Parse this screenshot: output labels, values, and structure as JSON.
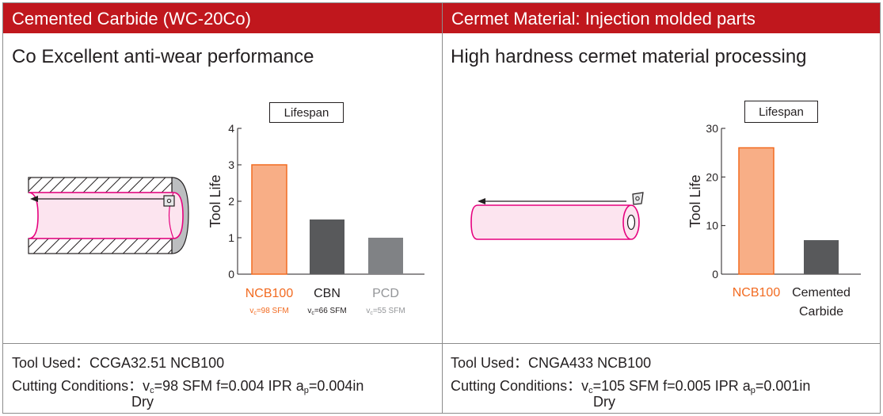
{
  "left": {
    "header": "Cemented Carbide (WC-20Co)",
    "subtitle": "Co Excellent anti-wear performance",
    "legend": "Lifespan",
    "tool_used": "Tool Used：CCGA32.51 NCB100",
    "cutting_prefix": "Cutting Conditions：v",
    "cutting_sub_c": "c",
    "cutting_mid": "=98 SFM  f=0.004 IPR  a",
    "cutting_sub_p": "p",
    "cutting_end": "=0.004in",
    "dry": "Dry"
  },
  "right": {
    "header": "Cermet Material: Injection molded parts",
    "subtitle": "High hardness cermet material processing",
    "legend": "Lifespan",
    "tool_used": "Tool Used：CNGA433 NCB100",
    "cutting_prefix": "Cutting Conditions：v",
    "cutting_sub_c": "c",
    "cutting_mid": "=105 SFM  f=0.005 IPR  a",
    "cutting_sub_p": "p",
    "cutting_end": "=0.001in",
    "dry": "Dry"
  },
  "colors": {
    "header_red": "#c0171d",
    "ncb100_fill": "#f8ae86",
    "ncb100_text": "#f26b21",
    "cbn_fill": "#58595b",
    "pcd_fill": "#808285",
    "pcd_text": "#939598",
    "workpiece_pink": "#fce4ef",
    "workpiece_edge": "#e6007e"
  },
  "chart_data": [
    {
      "type": "bar",
      "title": "Lifespan",
      "ylabel": "Tool Life",
      "ylim": [
        0,
        4
      ],
      "yticks": [
        0,
        1,
        2,
        3,
        4
      ],
      "categories": [
        "NCB100",
        "CBN",
        "PCD"
      ],
      "values": [
        3,
        1.5,
        1
      ],
      "conditions": [
        "vc=98 SFM",
        "vc=66 SFM",
        "vc=55 SFM"
      ],
      "bar_colors": [
        "#f8ae86",
        "#58595b",
        "#808285"
      ],
      "label_colors": [
        "#f26b21",
        "#231f20",
        "#939598"
      ]
    },
    {
      "type": "bar",
      "title": "Lifespan",
      "ylabel": "Tool Life",
      "ylim": [
        0,
        30
      ],
      "yticks": [
        0,
        10,
        20,
        30
      ],
      "categories": [
        "NCB100",
        "Cemented Carbide"
      ],
      "values": [
        26,
        7
      ],
      "bar_colors": [
        "#f8ae86",
        "#58595b"
      ],
      "label_colors": [
        "#f26b21",
        "#231f20"
      ]
    }
  ]
}
